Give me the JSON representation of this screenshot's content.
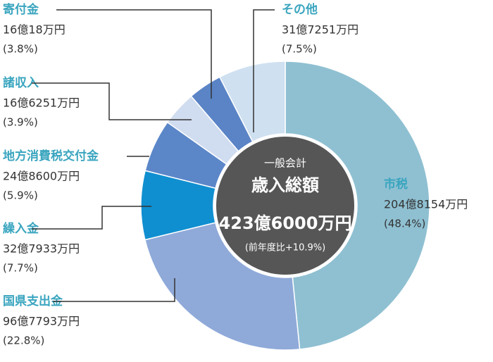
{
  "chart_data": {
    "type": "donut",
    "categories": [
      "市税",
      "国県支出金",
      "繰入金",
      "地方消費税交付金",
      "諸収入",
      "寄付金",
      "その他"
    ],
    "values": [
      48.4,
      22.8,
      7.7,
      5.9,
      3.9,
      3.8,
      7.5
    ],
    "value_labels": [
      "(48.4%)",
      "(22.8%)",
      "(7.7%)",
      "(5.9%)",
      "(3.9%)",
      "(3.8%)",
      "(7.5%)"
    ],
    "amount_labels": [
      "204億8154万円",
      "96億7793万円",
      "32億7933万円",
      "24億8600万円",
      "16億6251万円",
      "16億18万円",
      "31億7251万円"
    ],
    "colors": [
      "#8fc0d2",
      "#8faad9",
      "#108fd0",
      "#5b87c9",
      "#d0dcef",
      "#5a84c6",
      "#cfe0f1"
    ],
    "center_labels": [
      "一般会計",
      "歳入総額",
      "423億6000万円",
      "(前年度比+10.9%)"
    ]
  }
}
